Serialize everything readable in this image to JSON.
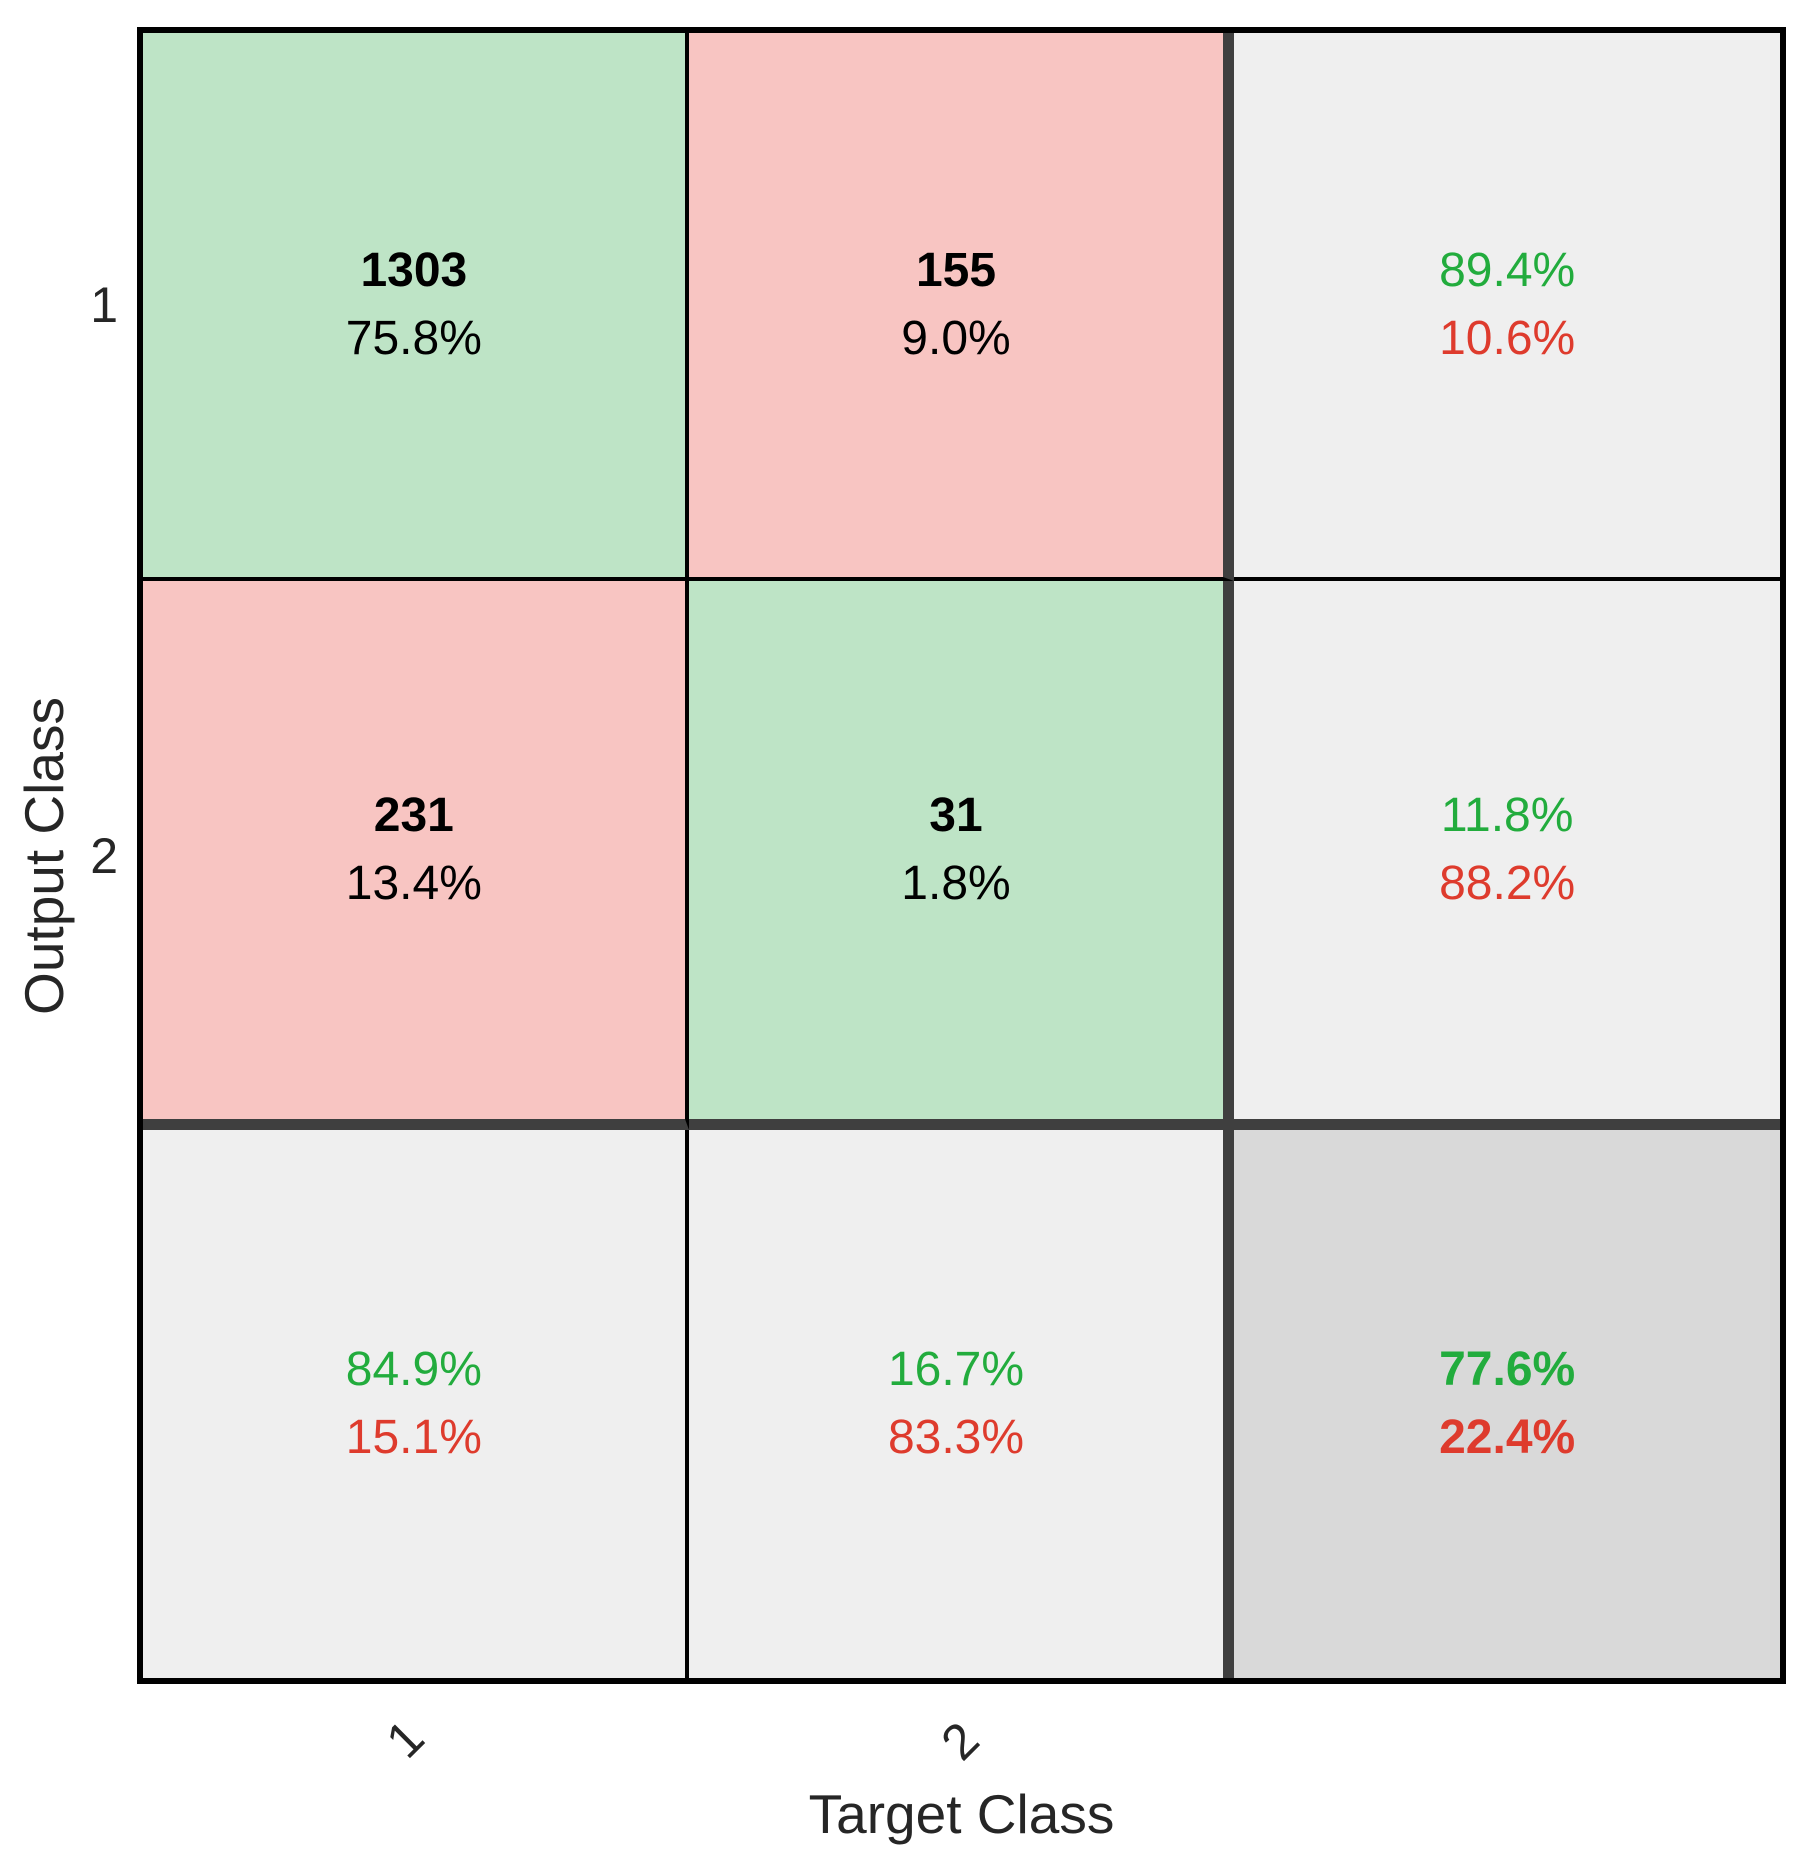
{
  "chart_data": {
    "type": "heatmap",
    "subtype": "confusion-matrix",
    "title": "",
    "xlabel": "Target Class",
    "ylabel": "Output Class",
    "x_tick_labels": [
      "1",
      "2"
    ],
    "y_tick_labels": [
      "1",
      "2"
    ],
    "classes": [
      "1",
      "2"
    ],
    "matrix_counts": [
      [
        1303,
        155
      ],
      [
        231,
        31
      ]
    ],
    "cells": [
      [
        {
          "count": "1303",
          "percent": "75.8%",
          "kind": "correct"
        },
        {
          "count": "155",
          "percent": "9.0%",
          "kind": "incorrect"
        }
      ],
      [
        {
          "count": "231",
          "percent": "13.4%",
          "kind": "incorrect"
        },
        {
          "count": "31",
          "percent": "1.8%",
          "kind": "correct"
        }
      ]
    ],
    "row_summaries": [
      {
        "green": "89.4%",
        "red": "10.6%"
      },
      {
        "green": "11.8%",
        "red": "88.2%"
      }
    ],
    "col_summaries": [
      {
        "green": "84.9%",
        "red": "15.1%"
      },
      {
        "green": "16.7%",
        "red": "83.3%"
      }
    ],
    "overall": {
      "green": "77.6%",
      "red": "22.4%"
    },
    "layout": {
      "grid": "3x3, last row and column are summaries",
      "legend": "none"
    }
  },
  "colors": {
    "correct_cell_bg": "#bee4c6",
    "incorrect_cell_bg": "#f8c5c2",
    "summary_cell_bg": "#efefef",
    "overall_cell_bg": "#d9d9d9",
    "green_text": "#22ac3d",
    "red_text": "#de3b2d",
    "count_text": "#000000",
    "axis_text": "#262626",
    "thin_grid_line": "#000000",
    "thick_grid_line": "#3f3f3f",
    "figure_bg": "#ffffff"
  }
}
